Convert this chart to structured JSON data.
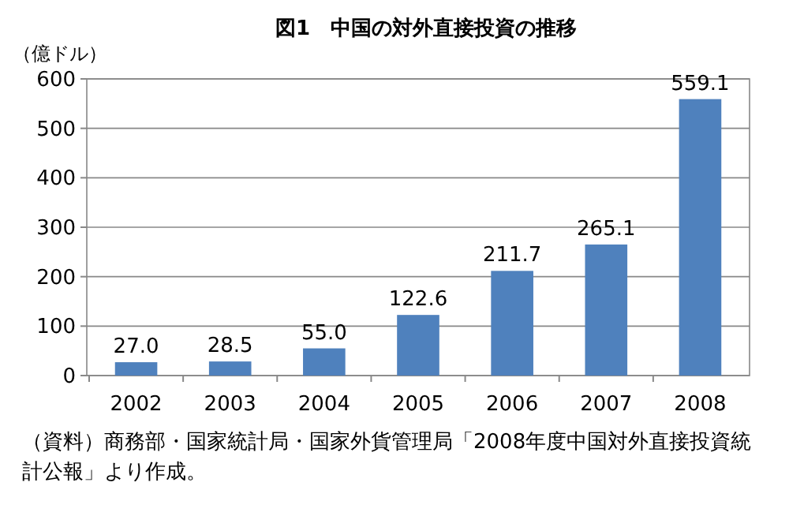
{
  "chart_data": {
    "type": "bar",
    "title": "図1　中国の対外直接投資の推移",
    "ylabel": "（億ドル）",
    "categories": [
      "2002",
      "2003",
      "2004",
      "2005",
      "2006",
      "2007",
      "2008"
    ],
    "values": [
      27.0,
      28.5,
      55.0,
      122.6,
      211.7,
      265.1,
      559.1
    ],
    "value_labels": [
      "27.0",
      "28.5",
      "55.0",
      "122.6",
      "211.7",
      "265.1",
      "559.1"
    ],
    "color": "#4f81bd",
    "ylim": [
      0,
      600
    ],
    "yticks": [
      0,
      100,
      200,
      300,
      400,
      500,
      600
    ],
    "grid": "y",
    "annotations": [
      "（資料）商務部・国家統計局・国家外貨管理局「2008年度中国対外直接投資統計公報」より作成。"
    ]
  }
}
